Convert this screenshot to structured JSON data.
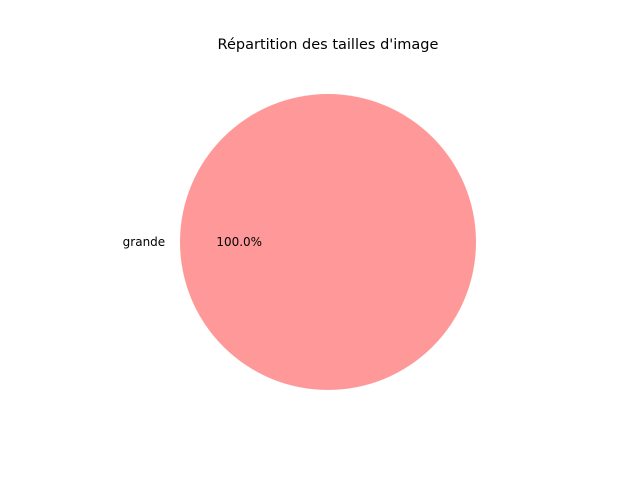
{
  "chart_data": {
    "type": "pie",
    "title": "Répartition des tailles d'image",
    "slices": [
      {
        "label": "grande",
        "value": 100.0,
        "pct_label": "100.0%",
        "color": "#ff9999"
      }
    ]
  }
}
